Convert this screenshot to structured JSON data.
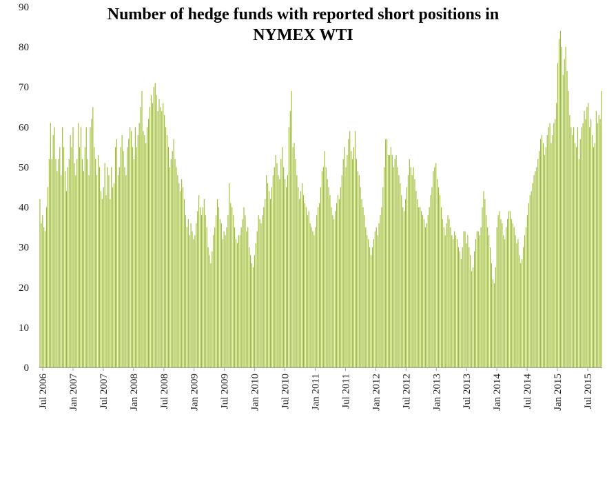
{
  "chart_data": {
    "type": "bar",
    "title_line1": "Number of  hedge funds with reported short positions in",
    "title_line2": "NYMEX WTI",
    "xlabel": "",
    "ylabel": "",
    "ylim": [
      0,
      90
    ],
    "y_ticks": [
      "0",
      "10",
      "20",
      "30",
      "40",
      "50",
      "60",
      "70",
      "80",
      "90"
    ],
    "x_tick_labels": [
      "Jul 2006",
      "Jan 2007",
      "Jul 2007",
      "Jan 2008",
      "Jul 2008",
      "Jan 2009",
      "Jul 2009",
      "Jan 2010",
      "Jul 2010",
      "Jan 2011",
      "Jul 2011",
      "Jan 2012",
      "Jul 2012",
      "Jan 2013",
      "Jul 2013",
      "Jan 2014",
      "Jul 2014",
      "Jan 2015",
      "Jul 2015"
    ],
    "bar_color": "#9bbb2a",
    "grid": false,
    "legend": "none",
    "frequency": "weekly",
    "start": "Jun 2006",
    "end": "Sep 2015",
    "values": [
      42,
      36,
      38,
      35,
      34,
      40,
      45,
      52,
      61,
      52,
      58,
      60,
      52,
      49,
      52,
      55,
      48,
      60,
      55,
      49,
      44,
      50,
      52,
      58,
      55,
      60,
      51,
      48,
      52,
      61,
      55,
      60,
      52,
      49,
      55,
      60,
      52,
      48,
      60,
      62,
      65,
      55,
      52,
      48,
      53,
      50,
      44,
      42,
      45,
      51,
      43,
      50,
      48,
      42,
      50,
      45,
      46,
      55,
      57,
      48,
      50,
      55,
      58,
      54,
      50,
      48,
      55,
      57,
      60,
      59,
      55,
      52,
      60,
      55,
      58,
      61,
      65,
      69,
      59,
      58,
      56,
      60,
      62,
      65,
      68,
      66,
      70,
      71,
      68,
      64,
      67,
      65,
      64,
      66,
      63,
      60,
      58,
      55,
      50,
      52,
      54,
      57,
      52,
      50,
      48,
      46,
      44,
      47,
      45,
      42,
      38,
      35,
      37,
      33,
      36,
      34,
      32,
      33,
      36,
      39,
      43,
      40,
      38,
      40,
      42,
      38,
      35,
      30,
      28,
      26,
      29,
      33,
      35,
      38,
      42,
      40,
      37,
      36,
      32,
      34,
      33,
      35,
      38,
      46,
      41,
      40,
      38,
      35,
      32,
      31,
      33,
      33,
      35,
      37,
      40,
      38,
      34,
      35,
      30,
      28,
      26,
      25,
      28,
      31,
      34,
      38,
      37,
      36,
      38,
      40,
      42,
      48,
      46,
      44,
      42,
      45,
      48,
      50,
      53,
      51,
      48,
      47,
      52,
      55,
      50,
      47,
      45,
      48,
      60,
      64,
      69,
      55,
      56,
      52,
      48,
      45,
      42,
      44,
      46,
      43,
      41,
      40,
      38,
      39,
      36,
      35,
      34,
      33,
      35,
      38,
      40,
      41,
      45,
      49,
      50,
      54,
      50,
      47,
      45,
      43,
      40,
      38,
      37,
      39,
      41,
      43,
      42,
      45,
      48,
      52,
      55,
      50,
      53,
      57,
      59,
      54,
      52,
      55,
      59,
      52,
      49,
      48,
      45,
      42,
      40,
      38,
      35,
      33,
      32,
      30,
      28,
      30,
      32,
      34,
      35,
      33,
      36,
      38,
      40,
      45,
      50,
      57,
      57,
      53,
      53,
      55,
      53,
      50,
      52,
      53,
      50,
      48,
      46,
      43,
      40,
      39,
      42,
      45,
      48,
      52,
      50,
      48,
      50,
      47,
      44,
      42,
      40,
      40,
      39,
      38,
      37,
      35,
      36,
      38,
      40,
      43,
      45,
      49,
      50,
      51,
      47,
      45,
      43,
      40,
      37,
      35,
      33,
      36,
      38,
      37,
      35,
      33,
      32,
      34,
      33,
      32,
      30,
      29,
      27,
      30,
      34,
      34,
      31,
      33,
      30,
      28,
      24,
      25,
      29,
      32,
      34,
      34,
      33,
      35,
      40,
      44,
      42,
      38,
      35,
      33,
      30,
      26,
      22,
      21,
      25,
      35,
      38,
      39,
      37,
      36,
      33,
      32,
      35,
      37,
      39,
      39,
      37,
      36,
      35,
      33,
      31,
      32,
      28,
      26,
      27,
      30,
      33,
      35,
      38,
      41,
      43,
      44,
      46,
      48,
      49,
      50,
      52,
      54,
      57,
      58,
      56,
      53,
      55,
      58,
      60,
      61,
      56,
      58,
      61,
      62,
      66,
      76,
      82,
      84,
      80,
      73,
      77,
      80,
      74,
      69,
      63,
      60,
      58,
      60,
      56,
      55,
      60,
      52,
      57,
      60,
      61,
      64,
      62,
      65,
      66,
      60,
      62,
      58,
      55,
      56,
      64,
      61,
      63,
      62,
      69
    ]
  }
}
